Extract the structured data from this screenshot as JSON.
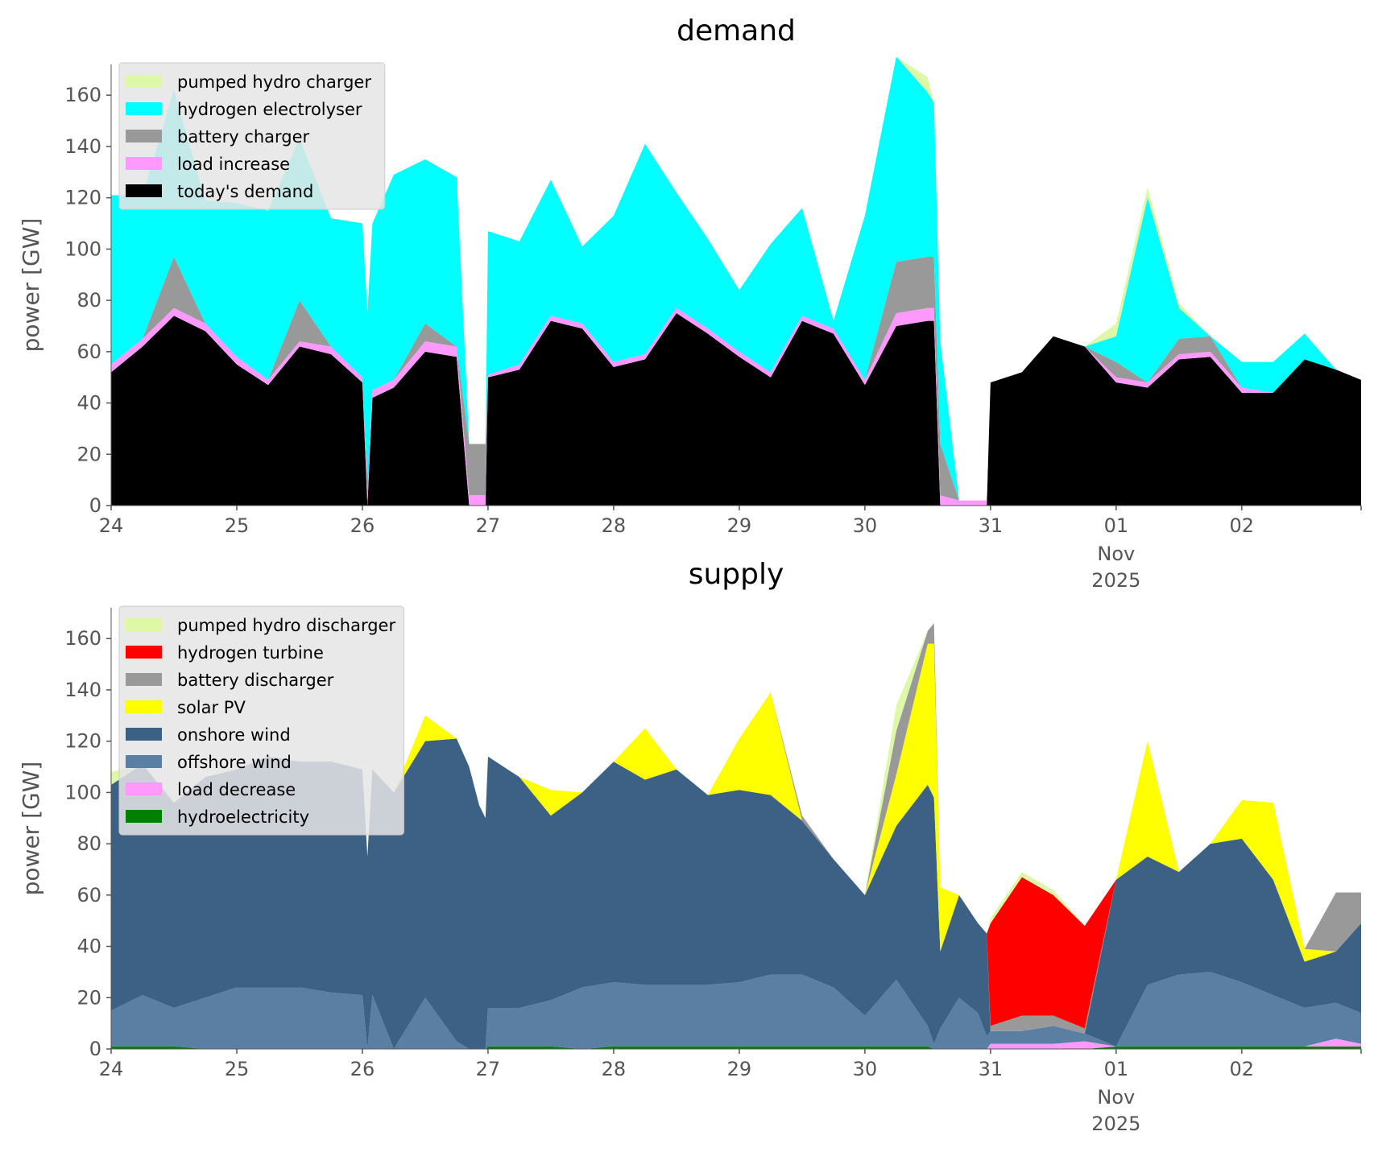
{
  "chart_data": [
    {
      "type": "area",
      "stacked": true,
      "title": "demand",
      "ylabel": "power [GW]",
      "xlabel": "",
      "ylim": [
        0,
        172
      ],
      "yticks": [
        0,
        20,
        40,
        60,
        80,
        100,
        120,
        140,
        160
      ],
      "xlim_days": [
        0,
        9.95
      ],
      "xticks": [
        {
          "day": 0,
          "label": "24"
        },
        {
          "day": 1,
          "label": "25"
        },
        {
          "day": 2,
          "label": "26"
        },
        {
          "day": 3,
          "label": "27"
        },
        {
          "day": 4,
          "label": "28"
        },
        {
          "day": 5,
          "label": "29"
        },
        {
          "day": 6,
          "label": "30"
        },
        {
          "day": 7,
          "label": "31"
        },
        {
          "day": 8,
          "label": "01"
        },
        {
          "day": 9,
          "label": "02"
        }
      ],
      "x_secondary_label": [
        "Nov",
        "2025"
      ],
      "x_secondary_day": 8,
      "legend_position": "upper-left",
      "grid": false,
      "x": [
        0,
        0.25,
        0.5,
        0.75,
        1,
        1.25,
        1.5,
        1.75,
        2,
        2.04,
        2.08,
        2.25,
        2.5,
        2.75,
        2.85,
        2.93,
        2.98,
        3,
        3.25,
        3.5,
        3.75,
        4,
        4.25,
        4.5,
        4.75,
        5,
        5.25,
        5.5,
        5.75,
        6,
        6.25,
        6.5,
        6.55,
        6.6,
        6.75,
        6.9,
        6.97,
        7,
        7.25,
        7.5,
        7.75,
        8,
        8.25,
        8.5,
        8.75,
        9,
        9.25,
        9.5,
        9.75,
        9.95
      ],
      "series": [
        {
          "name": "today's demand",
          "color": "#000000",
          "values": [
            52,
            62,
            74,
            68,
            55,
            47,
            62,
            59,
            48,
            0,
            42,
            46,
            60,
            58,
            0,
            0,
            0,
            50,
            53,
            72,
            69,
            54,
            57,
            75,
            67,
            58,
            50,
            72,
            67,
            47,
            70,
            72,
            72,
            0,
            0,
            0,
            0,
            48,
            52,
            66,
            62,
            48,
            46,
            57,
            58,
            44,
            44,
            57,
            53,
            49
          ]
        },
        {
          "name": "load increase",
          "color": "#ff99ff",
          "values": [
            3,
            3,
            3,
            3,
            3,
            2,
            2,
            3,
            2,
            4,
            3,
            3,
            4,
            4,
            4,
            4,
            4,
            1,
            2,
            2,
            2,
            2,
            2,
            2,
            2,
            2,
            2,
            2,
            2,
            2,
            5,
            5,
            5,
            4,
            2,
            2,
            2,
            0,
            0,
            0,
            0,
            2,
            2,
            2,
            2,
            2,
            0,
            0,
            0,
            0
          ]
        },
        {
          "name": "battery charger",
          "color": "#999999",
          "values": [
            0,
            0,
            20,
            0,
            0,
            0,
            16,
            0,
            0,
            6,
            0,
            0,
            7,
            0,
            20,
            20,
            20,
            0,
            0,
            0,
            0,
            0,
            0,
            0,
            0,
            0,
            0,
            0,
            0,
            0,
            20,
            20,
            20,
            20,
            0,
            0,
            0,
            0,
            0,
            0,
            0,
            6,
            0,
            6,
            6,
            0,
            0,
            0,
            0,
            0
          ]
        },
        {
          "name": "hydrogen electrolyser",
          "color": "#00ffff",
          "values": [
            66,
            56,
            65,
            48,
            60,
            66,
            63,
            50,
            60,
            65,
            65,
            80,
            64,
            66,
            0,
            0,
            0,
            56,
            48,
            53,
            30,
            57,
            82,
            45,
            35,
            24,
            50,
            42,
            3,
            64,
            80,
            64,
            60,
            40,
            0,
            0,
            0,
            0,
            0,
            0,
            0,
            10,
            72,
            12,
            0,
            10,
            12,
            10,
            0,
            0
          ]
        },
        {
          "name": "pumped hydro charger",
          "color": "#ddf9a8",
          "values": [
            0,
            0,
            0,
            0,
            0,
            0,
            0,
            0,
            0,
            0,
            0,
            0,
            0,
            0,
            0,
            0,
            0,
            0,
            0,
            0,
            0,
            0,
            0,
            0,
            0,
            0,
            0,
            0,
            0,
            0,
            0,
            6,
            0,
            0,
            0,
            0,
            0,
            0,
            0,
            0,
            0,
            5,
            4,
            2,
            0,
            0,
            0,
            0,
            0,
            0
          ]
        }
      ],
      "legend_order": [
        "pumped hydro charger",
        "hydrogen electrolyser",
        "battery charger",
        "load increase",
        "today's demand"
      ]
    },
    {
      "type": "area",
      "stacked": true,
      "title": "supply",
      "ylabel": "power [GW]",
      "xlabel": "",
      "ylim": [
        0,
        172
      ],
      "yticks": [
        0,
        20,
        40,
        60,
        80,
        100,
        120,
        140,
        160
      ],
      "xlim_days": [
        0,
        9.95
      ],
      "xticks": [
        {
          "day": 0,
          "label": "24"
        },
        {
          "day": 1,
          "label": "25"
        },
        {
          "day": 2,
          "label": "26"
        },
        {
          "day": 3,
          "label": "27"
        },
        {
          "day": 4,
          "label": "28"
        },
        {
          "day": 5,
          "label": "29"
        },
        {
          "day": 6,
          "label": "30"
        },
        {
          "day": 7,
          "label": "31"
        },
        {
          "day": 8,
          "label": "01"
        },
        {
          "day": 9,
          "label": "02"
        }
      ],
      "x_secondary_label": [
        "Nov",
        "2025"
      ],
      "x_secondary_day": 8,
      "legend_position": "upper-left",
      "grid": false,
      "x": [
        0,
        0.25,
        0.5,
        0.75,
        1,
        1.25,
        1.5,
        1.75,
        2,
        2.04,
        2.08,
        2.25,
        2.5,
        2.75,
        2.85,
        2.93,
        2.98,
        3,
        3.25,
        3.5,
        3.75,
        4,
        4.25,
        4.5,
        4.75,
        5,
        5.25,
        5.5,
        5.75,
        6,
        6.25,
        6.5,
        6.55,
        6.6,
        6.75,
        6.9,
        6.97,
        7,
        7.25,
        7.5,
        7.75,
        8,
        8.25,
        8.5,
        8.75,
        9,
        9.25,
        9.5,
        9.75,
        9.95
      ],
      "series": [
        {
          "name": "hydroelectricity",
          "color": "#008000",
          "values": [
            1,
            1,
            1,
            0,
            0,
            0,
            0,
            0,
            0,
            0,
            0,
            0,
            0,
            0,
            0,
            0,
            0,
            1,
            1,
            1,
            0,
            1,
            1,
            1,
            1,
            1,
            1,
            1,
            1,
            1,
            1,
            1,
            0,
            0,
            0,
            0,
            0,
            0,
            0,
            0,
            0,
            1,
            1,
            1,
            1,
            1,
            1,
            1,
            1,
            1
          ]
        },
        {
          "name": "load decrease",
          "color": "#ff99ff",
          "values": [
            0,
            0,
            0,
            0,
            0,
            0,
            0,
            0,
            0,
            0,
            0,
            0,
            0,
            0,
            0,
            0,
            0,
            0,
            0,
            0,
            0,
            0,
            0,
            0,
            0,
            0,
            0,
            0,
            0,
            0,
            0,
            0,
            0,
            0,
            0,
            0,
            0,
            2,
            2,
            2,
            3,
            0,
            0,
            0,
            0,
            0,
            0,
            0,
            3,
            1
          ]
        },
        {
          "name": "offshore wind",
          "color": "#5b7fa3",
          "values": [
            14,
            20,
            15,
            20,
            24,
            24,
            24,
            22,
            21,
            0,
            21,
            0,
            20,
            3,
            0,
            0,
            0,
            15,
            15,
            18,
            24,
            25,
            24,
            24,
            24,
            25,
            28,
            28,
            23,
            12,
            26,
            8,
            2,
            8,
            20,
            14,
            5,
            5,
            5,
            7,
            3,
            0,
            24,
            28,
            29,
            25,
            20,
            15,
            14,
            12
          ]
        },
        {
          "name": "onshore wind",
          "color": "#3c6184",
          "values": [
            88,
            90,
            80,
            86,
            85,
            90,
            88,
            90,
            88,
            75,
            88,
            100,
            100,
            118,
            110,
            95,
            90,
            98,
            90,
            72,
            76,
            86,
            80,
            84,
            74,
            75,
            70,
            60,
            50,
            47,
            60,
            94,
            96,
            30,
            40,
            35,
            40,
            0,
            0,
            0,
            0,
            65,
            50,
            40,
            50,
            56,
            45,
            18,
            20,
            35
          ]
        },
        {
          "name": "solar PV",
          "color": "#ffff00",
          "values": [
            0,
            0,
            0,
            0,
            0,
            0,
            0,
            0,
            0,
            0,
            0,
            0,
            10,
            0,
            0,
            0,
            0,
            0,
            0,
            10,
            0,
            0,
            20,
            0,
            0,
            20,
            40,
            0,
            0,
            0,
            20,
            55,
            60,
            25,
            0,
            0,
            0,
            0,
            0,
            0,
            0,
            0,
            45,
            0,
            0,
            15,
            30,
            5,
            0,
            0
          ]
        },
        {
          "name": "battery discharger",
          "color": "#999999",
          "values": [
            0,
            0,
            0,
            0,
            0,
            0,
            0,
            0,
            0,
            0,
            0,
            0,
            0,
            0,
            0,
            0,
            0,
            0,
            0,
            0,
            0,
            0,
            0,
            0,
            0,
            0,
            0,
            2,
            0,
            0,
            17,
            5,
            8,
            0,
            0,
            0,
            0,
            2,
            6,
            4,
            2,
            0,
            0,
            0,
            0,
            0,
            0,
            0,
            23,
            12
          ]
        },
        {
          "name": "hydrogen turbine",
          "color": "#ff0000",
          "values": [
            0,
            0,
            0,
            0,
            0,
            0,
            0,
            0,
            0,
            0,
            0,
            0,
            0,
            0,
            0,
            0,
            0,
            0,
            0,
            0,
            0,
            0,
            0,
            0,
            0,
            0,
            0,
            0,
            0,
            0,
            0,
            0,
            0,
            0,
            0,
            0,
            0,
            40,
            54,
            47,
            40,
            0,
            0,
            0,
            0,
            0,
            0,
            0,
            0,
            0
          ]
        },
        {
          "name": "pumped hydro discharger",
          "color": "#ddf9a8",
          "values": [
            5,
            0,
            0,
            0,
            0,
            0,
            0,
            0,
            0,
            0,
            0,
            0,
            0,
            0,
            0,
            0,
            0,
            0,
            0,
            0,
            0,
            0,
            0,
            0,
            0,
            0,
            0,
            0,
            0,
            0,
            10,
            0,
            0,
            0,
            0,
            0,
            0,
            2,
            2,
            2,
            0,
            0,
            0,
            0,
            0,
            0,
            0,
            0,
            0,
            0
          ]
        }
      ],
      "legend_order": [
        "pumped hydro discharger",
        "hydrogen turbine",
        "battery discharger",
        "solar PV",
        "onshore wind",
        "offshore wind",
        "load decrease",
        "hydroelectricity"
      ]
    }
  ]
}
